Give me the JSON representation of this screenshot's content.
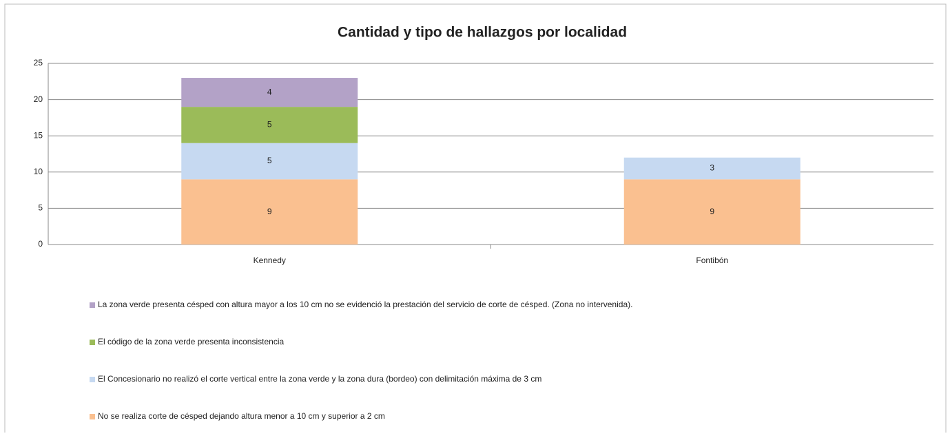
{
  "chart_data": {
    "type": "stacked_bar",
    "title": "Cantidad y tipo de hallazgos por localidad",
    "categories": [
      "Kennedy",
      "Fontibón"
    ],
    "series": [
      {
        "name": "No se realiza corte de césped dejando altura menor a 10 cm y superior a 2 cm",
        "color": "#fac090",
        "values": [
          9,
          9
        ]
      },
      {
        "name": "El Concesionario no realizó el corte vertical entre la zona verde y la zona dura (bordeo) con delimitación máxima de 3 cm",
        "color": "#c6d9f1",
        "values": [
          5,
          3
        ]
      },
      {
        "name": "El código de la zona verde presenta inconsistencia",
        "color": "#9bbb59",
        "values": [
          5,
          null
        ]
      },
      {
        "name": "La zona verde presenta césped con altura mayor a los 10 cm no se evidenció la prestación del servicio de corte de césped. (Zona no intervenida).",
        "color": "#b3a2c7",
        "values": [
          4,
          null
        ]
      }
    ],
    "ylim": [
      0,
      25
    ],
    "yticks": [
      0,
      5,
      10,
      15,
      20,
      25
    ],
    "grid": true,
    "legend": "bottom"
  }
}
